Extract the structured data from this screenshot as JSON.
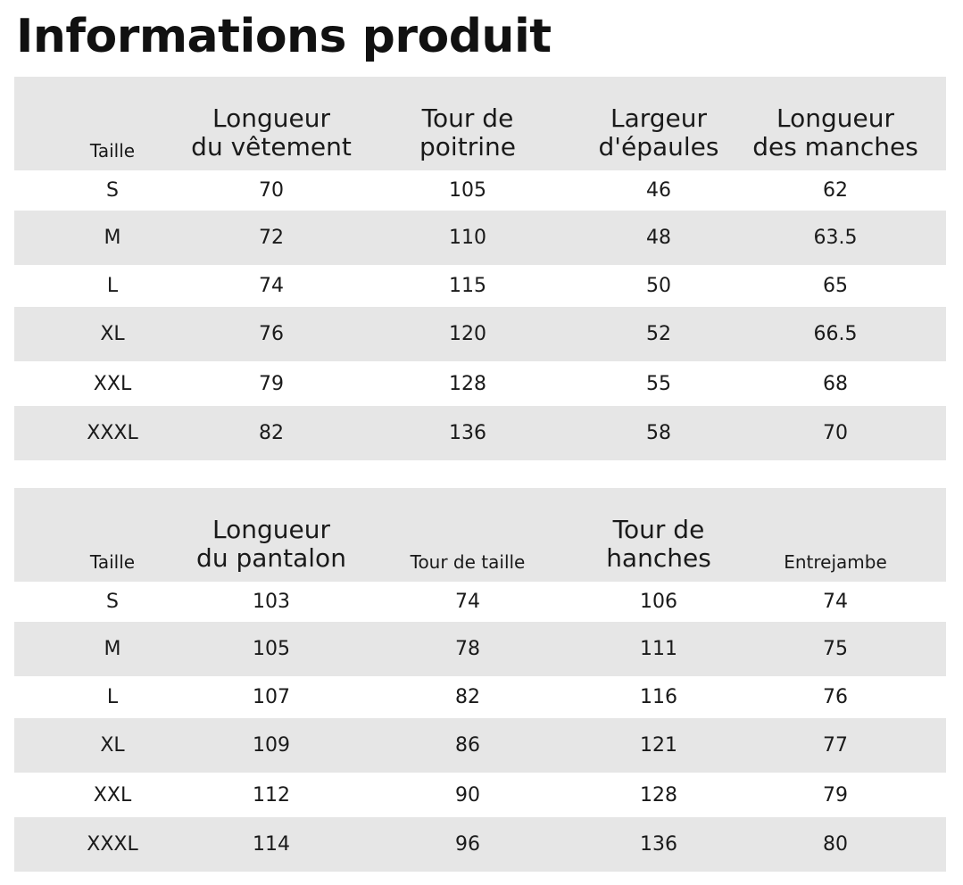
{
  "title": "Informations produit",
  "top_table": {
    "headers": [
      "Taille",
      "Longueur du vêtement",
      "Tour de poitrine",
      "Largeur d'épaules",
      "Longueur des manches"
    ],
    "header_lines": [
      [
        "Taille"
      ],
      [
        "Longueur",
        "du vêtement"
      ],
      [
        "Tour de",
        "poitrine"
      ],
      [
        "Largeur",
        "d'épaules"
      ],
      [
        "Longueur",
        "des manches"
      ]
    ],
    "rows": [
      [
        "S",
        "70",
        "105",
        "46",
        "62"
      ],
      [
        "M",
        "72",
        "110",
        "48",
        "63.5"
      ],
      [
        "L",
        "74",
        "115",
        "50",
        "65"
      ],
      [
        "XL",
        "76",
        "120",
        "52",
        "66.5"
      ],
      [
        "XXL",
        "79",
        "128",
        "55",
        "68"
      ],
      [
        "XXXL",
        "82",
        "136",
        "58",
        "70"
      ]
    ]
  },
  "bottom_table": {
    "headers": [
      "Taille",
      "Longueur du pantalon",
      "Tour de taille",
      "Tour de hanches",
      "Entrejambe"
    ],
    "header_lines": [
      [
        "Taille"
      ],
      [
        "Longueur",
        "du pantalon"
      ],
      [
        "Tour de taille"
      ],
      [
        "Tour de",
        "hanches"
      ],
      [
        "Entrejambe"
      ]
    ],
    "rows": [
      [
        "S",
        "103",
        "74",
        "106",
        "74"
      ],
      [
        "M",
        "105",
        "78",
        "111",
        "75"
      ],
      [
        "L",
        "107",
        "82",
        "116",
        "76"
      ],
      [
        "XL",
        "109",
        "86",
        "121",
        "77"
      ],
      [
        "XXL",
        "112",
        "90",
        "128",
        "79"
      ],
      [
        "XXXL",
        "114",
        "96",
        "136",
        "80"
      ]
    ]
  },
  "colors": {
    "shade": "#e6e6e6",
    "text": "#1a1a1a"
  }
}
